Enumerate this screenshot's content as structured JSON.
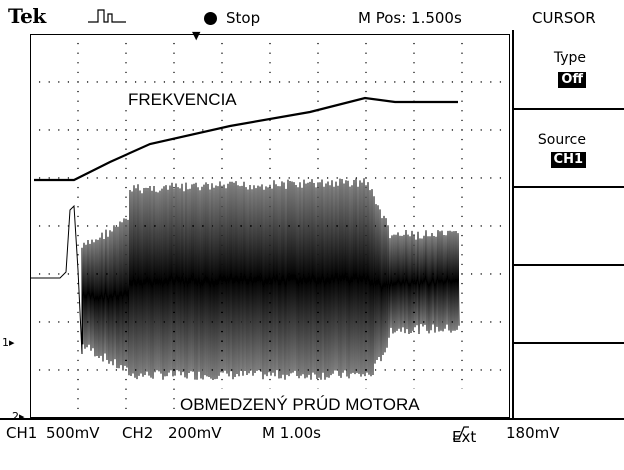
{
  "header": {
    "brand": "Tek",
    "trigger_icon": "trigger-waveform-icon",
    "run_state": "Stop",
    "mpos": "M Pos: 1.500s",
    "menu_title": "CURSOR"
  },
  "side_menu": {
    "type_label": "Type",
    "type_value": "Off",
    "source_label": "Source",
    "source_value": "CH1"
  },
  "screen": {
    "label_top": "FREKVENCIA",
    "label_bottom": "OBMEDZENÝ PRÚD MOTORA",
    "ch1_marker": "1",
    "ch2_marker": "2"
  },
  "status": {
    "ch1": "CH1",
    "ch1_scale": "500mV",
    "ch2": "CH2",
    "ch2_scale": "200mV",
    "timebase": "M 1.00s",
    "trigger_source": "Ext",
    "trigger_level": "180mV"
  },
  "colors": {
    "trace": "#000000",
    "background": "#ffffff"
  }
}
